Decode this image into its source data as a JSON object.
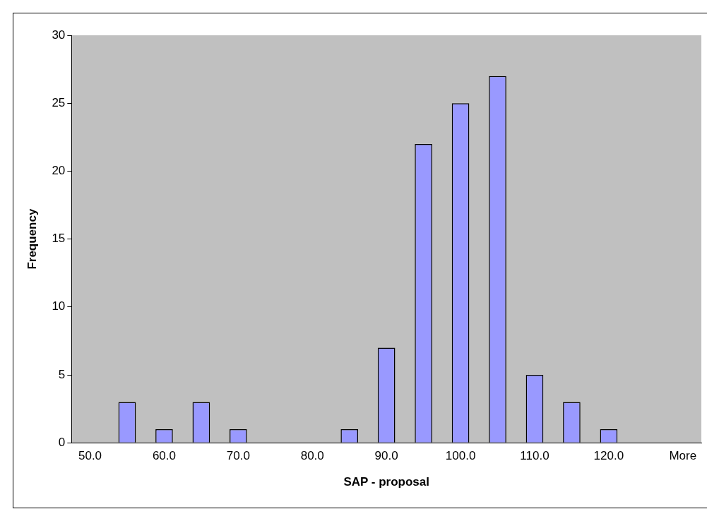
{
  "chart_data": {
    "type": "bar",
    "xlabel": "SAP - proposal",
    "ylabel": "Frequency",
    "categories": [
      "50.0",
      null,
      "60.0",
      null,
      "70.0",
      null,
      "80.0",
      null,
      "90.0",
      null,
      "100.0",
      null,
      "110.0",
      null,
      "120.0",
      null,
      "More"
    ],
    "values": [
      0,
      3,
      1,
      3,
      1,
      0,
      0,
      1,
      7,
      22,
      25,
      27,
      5,
      3,
      1,
      0,
      0
    ],
    "color": "#9999ff",
    "ylim": [
      0,
      30
    ],
    "yticks": [
      0,
      5,
      10,
      15,
      20,
      25,
      30
    ]
  }
}
